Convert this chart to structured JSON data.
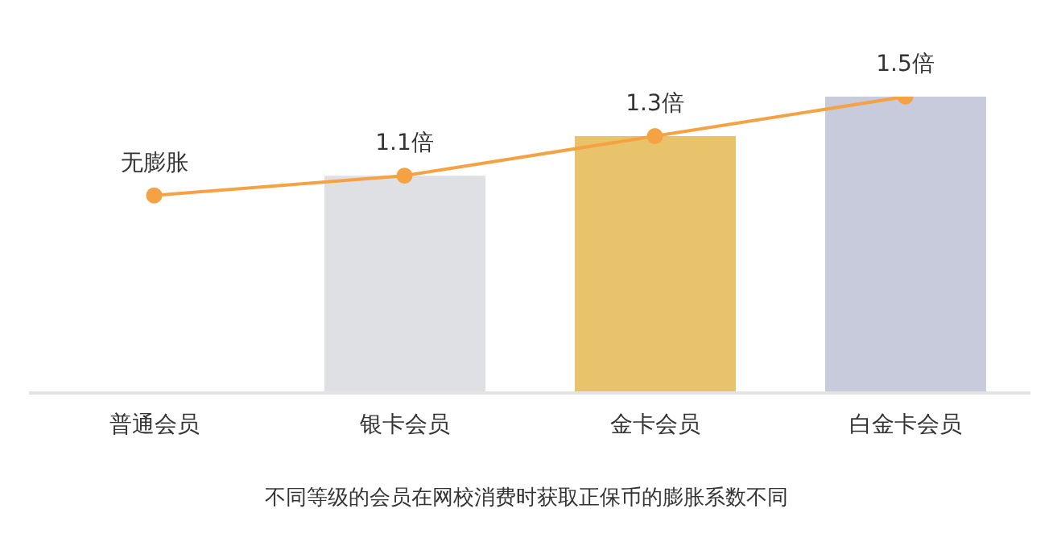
{
  "chart_data": {
    "type": "bar",
    "categories": [
      "普通会员",
      "银卡会员",
      "金卡会员",
      "白金卡会员"
    ],
    "series": [
      {
        "colors": [
          "#dfe0e4",
          "#dfe0e4",
          "#e9c36c",
          "#c8cbdc"
        ],
        "values": [
          null,
          1.1,
          1.3,
          1.5
        ]
      },
      {
        "type": "line",
        "color": "#f4a244",
        "values": [
          1.0,
          1.1,
          1.3,
          1.5
        ],
        "value_labels": [
          "无膨胀",
          "1.1倍",
          "1.3倍",
          "1.5倍"
        ]
      }
    ],
    "marker": "circle",
    "line_style": "solid",
    "annotations": [
      "不同等级的会员在网校消费时获取正保币的膨胀系数不同"
    ]
  }
}
